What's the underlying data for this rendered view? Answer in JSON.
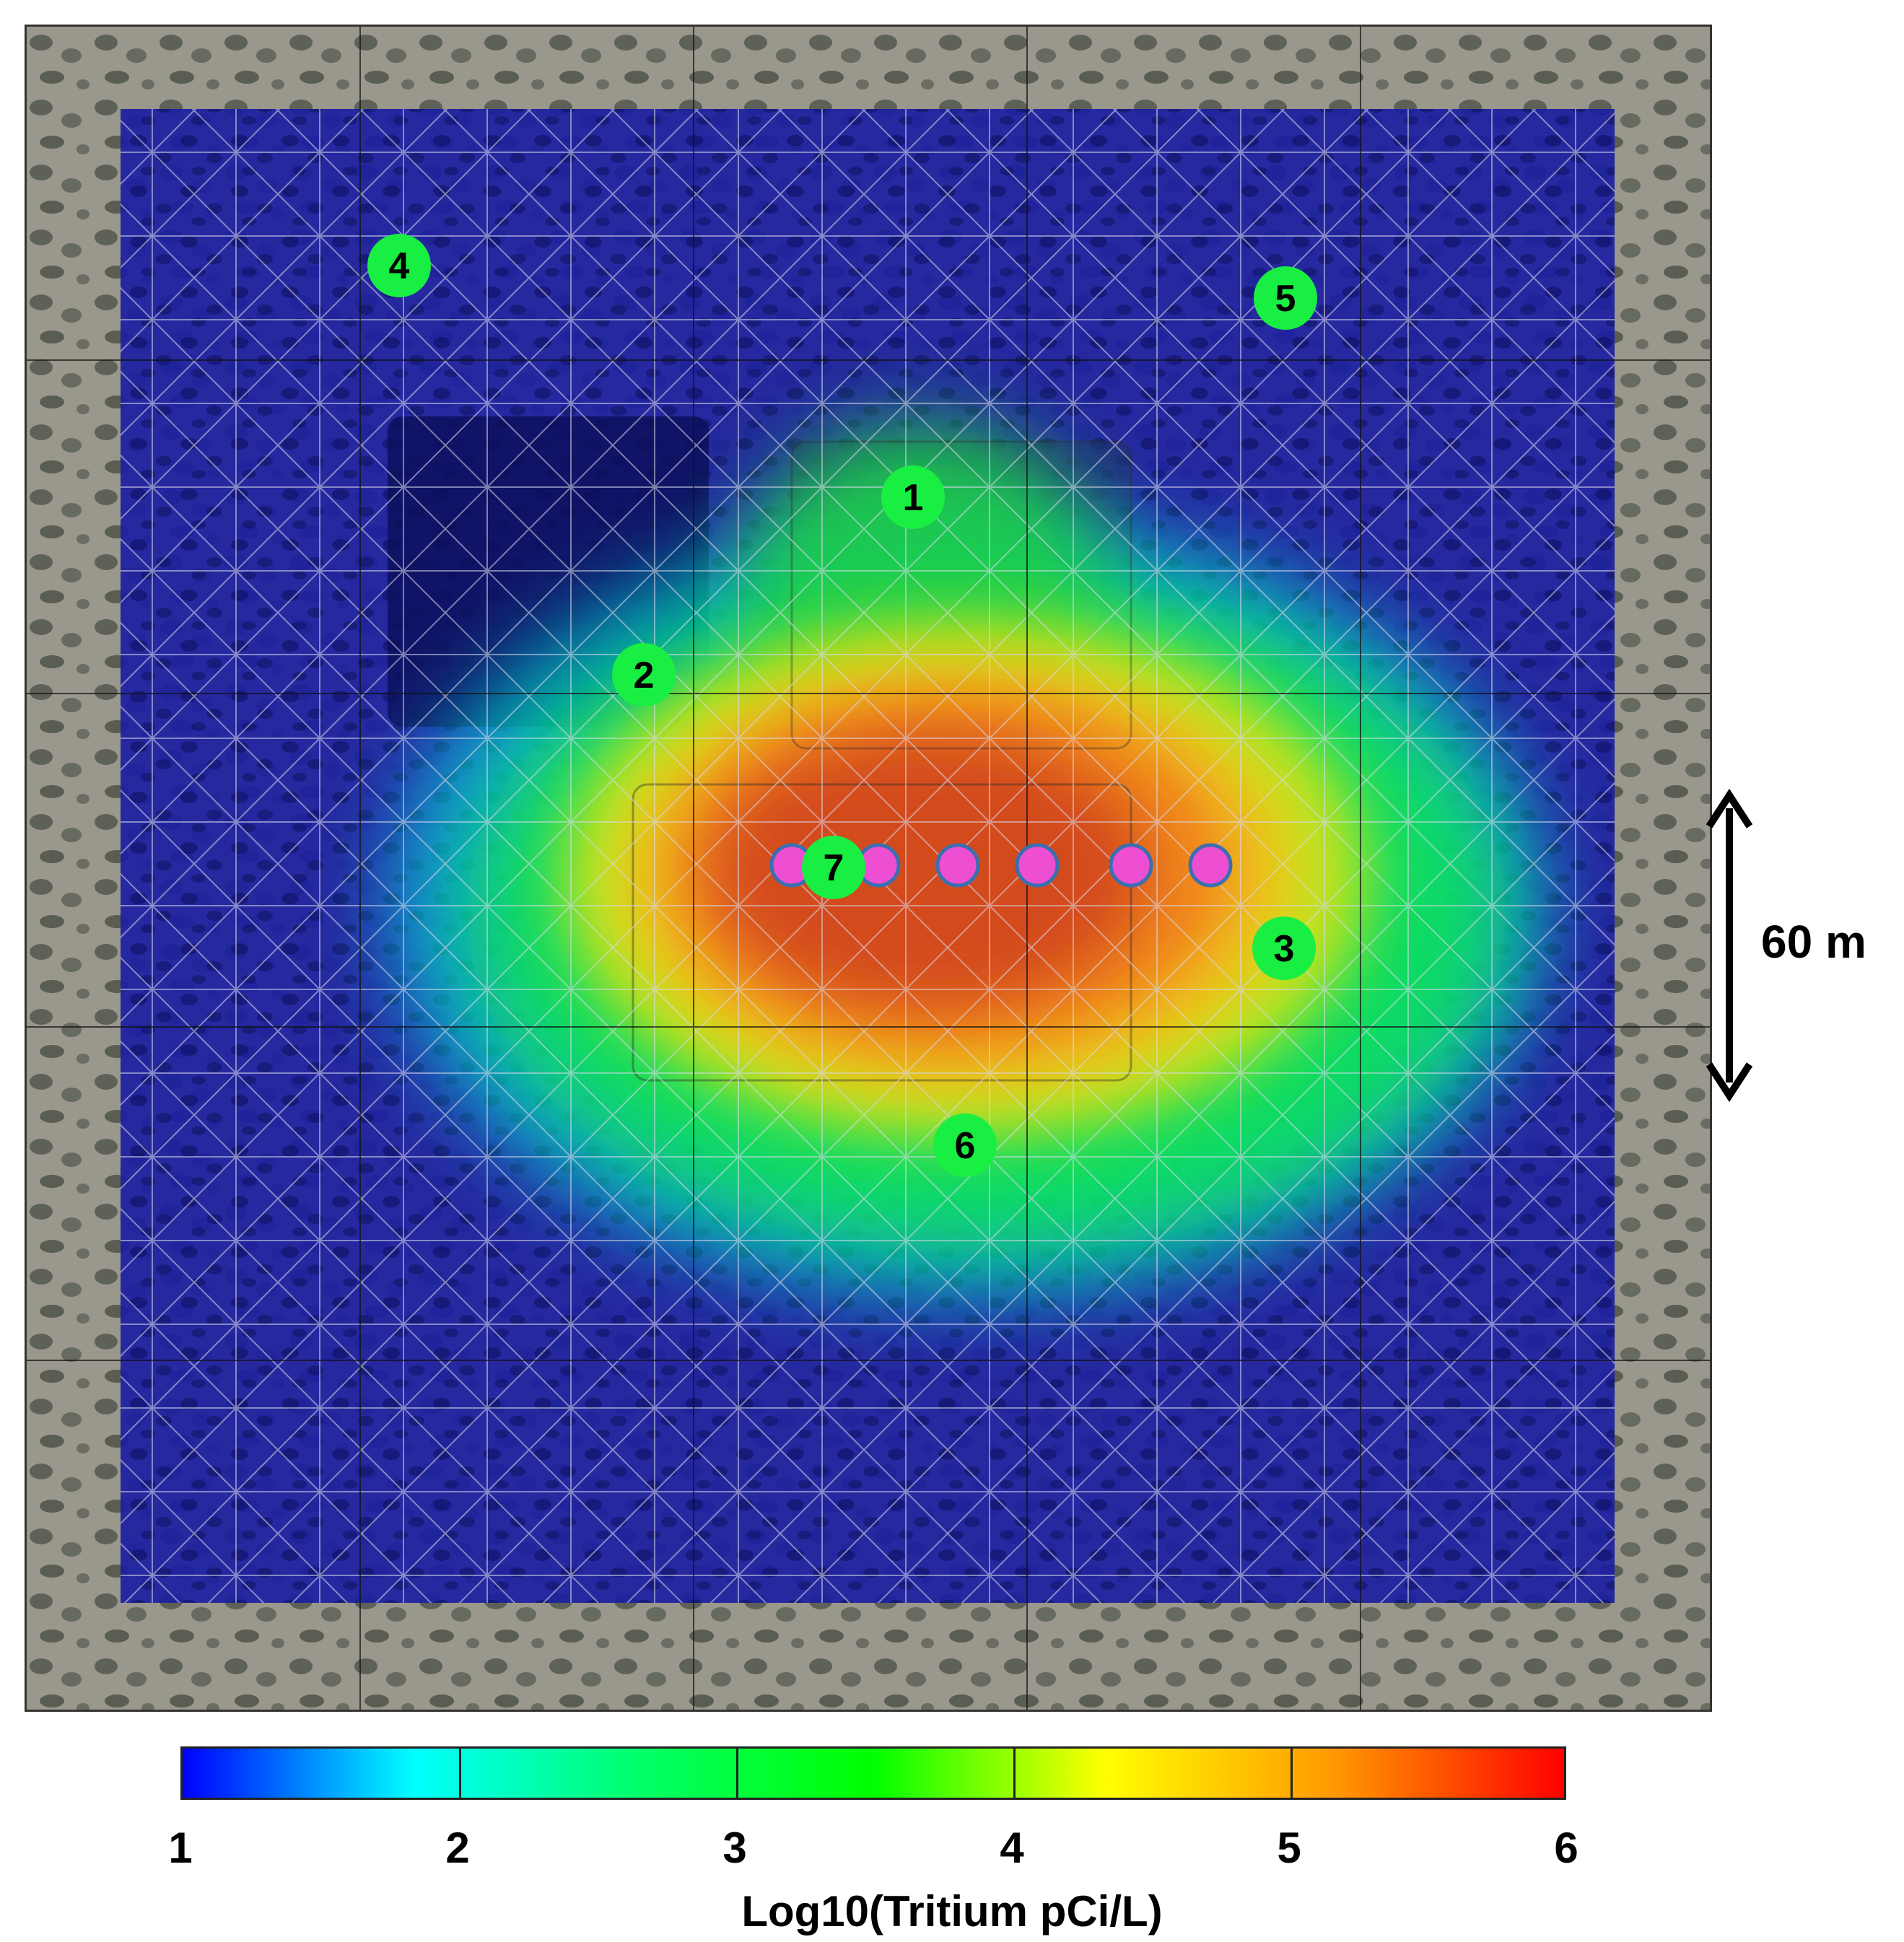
{
  "map": {
    "sampling_sites": [
      {
        "label": "1"
      },
      {
        "label": "2"
      },
      {
        "label": "3"
      },
      {
        "label": "4"
      },
      {
        "label": "5"
      },
      {
        "label": "6"
      },
      {
        "label": "7"
      }
    ],
    "magenta_point_count": 6,
    "colors": {
      "site_marker": "#19ee43",
      "line_marker": "#ee4fd2",
      "line_marker_stroke": "#3a6fb0",
      "overlay_low": "#1a1a9e",
      "outer_imagery": "#8f8b80"
    }
  },
  "scale_bar": {
    "label": "60 m",
    "icon": "double-headed-arrow-icon"
  },
  "colorbar": {
    "title": "Log10(Tritium pCi/L)",
    "ticks": [
      "1",
      "2",
      "3",
      "4",
      "5",
      "6"
    ],
    "range": [
      1,
      6
    ],
    "stops": [
      "#0000ff",
      "#00ffff",
      "#00ff66",
      "#00ff00",
      "#ffff00",
      "#ff9900",
      "#ff0000"
    ]
  }
}
